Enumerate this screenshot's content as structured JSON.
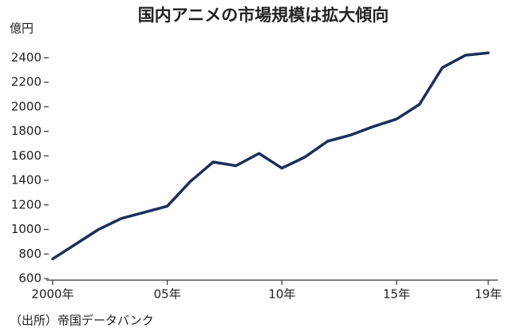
{
  "chart_data": {
    "type": "line",
    "title": "国内アニメの市場規模は拡大傾向",
    "y_label": "億円",
    "source": "（出所）帝国データバンク",
    "x": [
      2000,
      2001,
      2002,
      2003,
      2004,
      2005,
      2006,
      2007,
      2008,
      2009,
      2010,
      2011,
      2012,
      2013,
      2014,
      2015,
      2016,
      2017,
      2018,
      2019
    ],
    "series": [
      {
        "color": "#1b2f5b",
        "values": [
          760,
          880,
          1000,
          1090,
          1140,
          1190,
          1390,
          1550,
          1520,
          1620,
          1500,
          1590,
          1720,
          1770,
          1840,
          1900,
          2020,
          2320,
          2420,
          2440
        ]
      }
    ],
    "xlim": [
      2000,
      2019
    ],
    "xticks": [
      {
        "value": 2000,
        "label": "2000年"
      },
      {
        "value": 2005,
        "label": "05年"
      },
      {
        "value": 2010,
        "label": "10年"
      },
      {
        "value": 2015,
        "label": "15年"
      },
      {
        "value": 2019,
        "label": "19年"
      }
    ],
    "ylim": [
      600,
      2500
    ],
    "yticks": [
      600,
      800,
      1000,
      1200,
      1400,
      1600,
      1800,
      2000,
      2200,
      2400
    ]
  }
}
